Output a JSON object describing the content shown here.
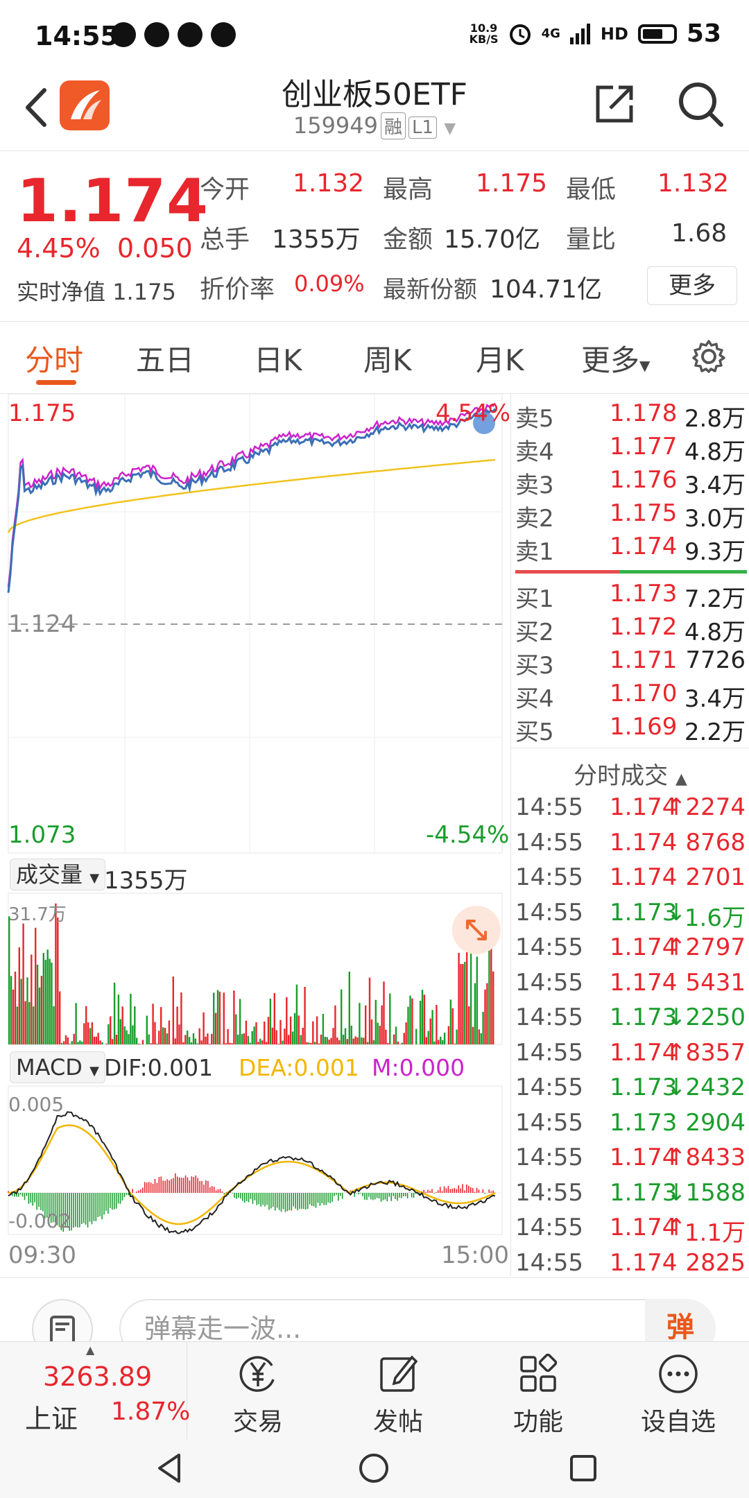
{
  "status_bar": {
    "time": "14:55",
    "net_speed_top": "10.9",
    "net_speed_unit": "KB/S",
    "network": "4G",
    "hd": "HD",
    "battery": "53"
  },
  "header": {
    "title": "创业板50ETF",
    "code": "159949",
    "tag1": "融",
    "tag2": "L1"
  },
  "quote": {
    "price": "1.174",
    "change_pct": "4.45%",
    "change_abs": "0.050",
    "nav_label": "实时净值",
    "nav_value": "1.175",
    "open_label": "今开",
    "open_value": "1.132",
    "high_label": "最高",
    "high_value": "1.175",
    "low_label": "最低",
    "low_value": "1.132",
    "vol_label": "总手",
    "vol_value": "1355万",
    "amount_label": "金额",
    "amount_value": "15.70亿",
    "ratio_label": "量比",
    "ratio_value": "1.68",
    "premium_label": "折价率",
    "premium_value": "0.09%",
    "shares_label": "最新份额",
    "shares_value": "104.71亿",
    "more_label": "更多"
  },
  "tabs": [
    "分时",
    "五日",
    "日K",
    "周K",
    "月K",
    "更多"
  ],
  "chart_labels": {
    "price_top": "1.175",
    "pct_top": "4.54%",
    "price_mid": "1.124",
    "price_bottom": "1.073",
    "pct_bottom": "-4.54%",
    "volume_selector": "成交量",
    "volume_value": "1355万",
    "volume_max": "31.7万",
    "macd_selector": "MACD",
    "dif": "DIF:0.001",
    "dea": "DEA:0.001",
    "m": "M:0.000",
    "macd_top": "0.005",
    "macd_bottom": "-0.002",
    "time_start": "09:30",
    "time_end": "15:00"
  },
  "order_book": {
    "asks": [
      {
        "label": "卖5",
        "price": "1.178",
        "vol": "2.8万"
      },
      {
        "label": "卖4",
        "price": "1.177",
        "vol": "4.8万"
      },
      {
        "label": "卖3",
        "price": "1.176",
        "vol": "3.4万"
      },
      {
        "label": "卖2",
        "price": "1.175",
        "vol": "3.0万"
      },
      {
        "label": "卖1",
        "price": "1.174",
        "vol": "9.3万"
      }
    ],
    "bids": [
      {
        "label": "买1",
        "price": "1.173",
        "vol": "7.2万"
      },
      {
        "label": "买2",
        "price": "1.172",
        "vol": "4.8万"
      },
      {
        "label": "买3",
        "price": "1.171",
        "vol": "7726"
      },
      {
        "label": "买4",
        "price": "1.170",
        "vol": "3.4万"
      },
      {
        "label": "买5",
        "price": "1.169",
        "vol": "2.2万"
      }
    ],
    "ticks_title": "分时成交",
    "ticks": [
      {
        "time": "14:55",
        "price": "1.174",
        "arrow": "↑",
        "vol": "2274",
        "dir": "up"
      },
      {
        "time": "14:55",
        "price": "1.174",
        "arrow": "",
        "vol": "8768",
        "dir": "flat"
      },
      {
        "time": "14:55",
        "price": "1.174",
        "arrow": "",
        "vol": "2701",
        "dir": "flat"
      },
      {
        "time": "14:55",
        "price": "1.173",
        "arrow": "↓",
        "vol": "1.6万",
        "dir": "down"
      },
      {
        "time": "14:55",
        "price": "1.174",
        "arrow": "↑",
        "vol": "2797",
        "dir": "up"
      },
      {
        "time": "14:55",
        "price": "1.174",
        "arrow": "",
        "vol": "5431",
        "dir": "flat"
      },
      {
        "time": "14:55",
        "price": "1.173",
        "arrow": "↓",
        "vol": "2250",
        "dir": "down"
      },
      {
        "time": "14:55",
        "price": "1.174",
        "arrow": "↑",
        "vol": "8357",
        "dir": "up"
      },
      {
        "time": "14:55",
        "price": "1.173",
        "arrow": "↓",
        "vol": "2432",
        "dir": "down"
      },
      {
        "time": "14:55",
        "price": "1.173",
        "arrow": "",
        "vol": "2904",
        "dir": "flatg"
      },
      {
        "time": "14:55",
        "price": "1.174",
        "arrow": "↑",
        "vol": "8433",
        "dir": "up"
      },
      {
        "time": "14:55",
        "price": "1.173",
        "arrow": "↓",
        "vol": "1588",
        "dir": "down"
      },
      {
        "time": "14:55",
        "price": "1.174",
        "arrow": "↑",
        "vol": "1.1万",
        "dir": "up"
      },
      {
        "time": "14:55",
        "price": "1.174",
        "arrow": "",
        "vol": "2825",
        "dir": "flat"
      }
    ]
  },
  "comment": {
    "placeholder": "弹幕走一波...",
    "send": "弹"
  },
  "bottom_nav": {
    "index_value": "3263.89",
    "index_name": "上证",
    "index_pct": "1.87%",
    "items": [
      "交易",
      "发帖",
      "功能",
      "设自选"
    ]
  },
  "colors": {
    "up": "#e8262d",
    "down": "#1a9d2c",
    "accent": "#e8581d",
    "price_line": "#3b6fb6",
    "avg_line": "#f2c21b",
    "dea": "#f2b600",
    "m": "#cc22cc"
  }
}
